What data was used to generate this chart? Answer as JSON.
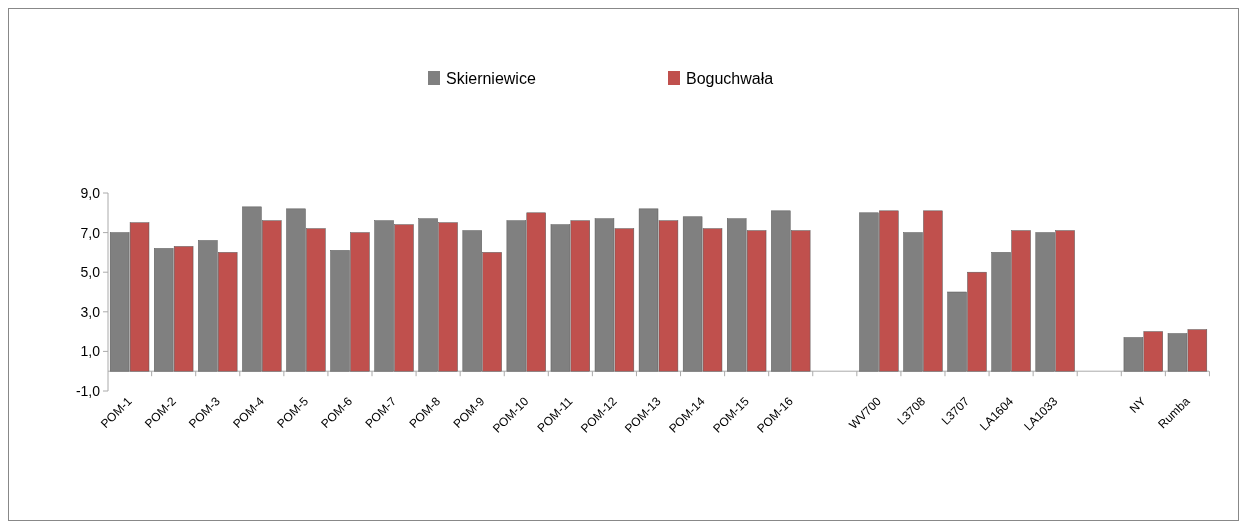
{
  "chart_data": {
    "type": "bar",
    "categories": [
      "POM-1",
      "POM-2",
      "POM-3",
      "POM-4",
      "POM-5",
      "POM-6",
      "POM-7",
      "POM-8",
      "POM-9",
      "POM-10",
      "POM-11",
      "POM-12",
      "POM-13",
      "POM-14",
      "POM-15",
      "POM-16",
      null,
      "WV700",
      "L3708",
      "L3707",
      "LA1604",
      "LA1033",
      null,
      "NY",
      "Rumba"
    ],
    "series": [
      {
        "name": "Skierniewice",
        "color": "#808080",
        "values": [
          7.0,
          6.2,
          6.6,
          8.3,
          8.2,
          6.1,
          7.6,
          7.7,
          7.1,
          7.6,
          7.4,
          7.7,
          8.2,
          7.8,
          7.7,
          8.1,
          null,
          8.0,
          7.0,
          4.0,
          6.0,
          7.0,
          null,
          1.7,
          1.9
        ]
      },
      {
        "name": "Boguchwała",
        "color": "#c0504d",
        "values": [
          7.5,
          6.3,
          6.0,
          7.6,
          7.2,
          7.0,
          7.4,
          7.5,
          6.0,
          8.0,
          7.6,
          7.2,
          7.6,
          7.2,
          7.1,
          7.1,
          null,
          8.1,
          8.1,
          5.0,
          7.1,
          7.1,
          null,
          2.0,
          2.1
        ]
      }
    ],
    "ylim": [
      -1,
      9
    ],
    "yticks": [
      {
        "value": -1,
        "label": "-1,0"
      },
      {
        "value": 1,
        "label": "1,0"
      },
      {
        "value": 3,
        "label": "3,0"
      },
      {
        "value": 5,
        "label": "5,0"
      },
      {
        "value": 7,
        "label": "7,0"
      },
      {
        "value": 9,
        "label": "9,0"
      }
    ],
    "legend": "top"
  }
}
